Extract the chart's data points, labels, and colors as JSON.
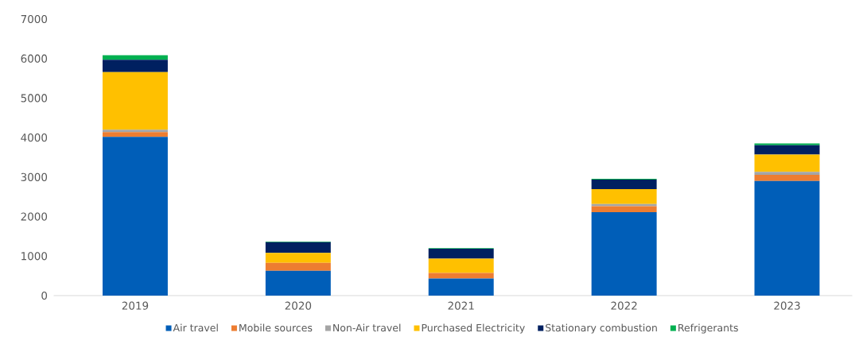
{
  "chart_data": {
    "type": "bar",
    "stacked": true,
    "categories": [
      "2019",
      "2020",
      "2021",
      "2022",
      "2023"
    ],
    "series": [
      {
        "name": "Air travel",
        "color": "#005eb8",
        "values": [
          4020,
          630,
          435,
          2110,
          2900
        ]
      },
      {
        "name": "Mobile sources",
        "color": "#ed7d31",
        "values": [
          120,
          200,
          140,
          155,
          160
        ]
      },
      {
        "name": "Non-Air travel",
        "color": "#a5a5a5",
        "values": [
          60,
          0,
          0,
          55,
          75
        ]
      },
      {
        "name": "Purchased Electricity",
        "color": "#ffc000",
        "values": [
          1455,
          250,
          360,
          375,
          435
        ]
      },
      {
        "name": "Stationary combustion",
        "color": "#002060",
        "values": [
          315,
          275,
          250,
          240,
          235
        ]
      },
      {
        "name": "Refrigerants",
        "color": "#00b050",
        "values": [
          115,
          15,
          15,
          20,
          45
        ]
      }
    ],
    "ylim": [
      0,
      7000
    ],
    "yticks": [
      0,
      1000,
      2000,
      3000,
      4000,
      5000,
      6000,
      7000
    ],
    "legend": "bottom"
  }
}
